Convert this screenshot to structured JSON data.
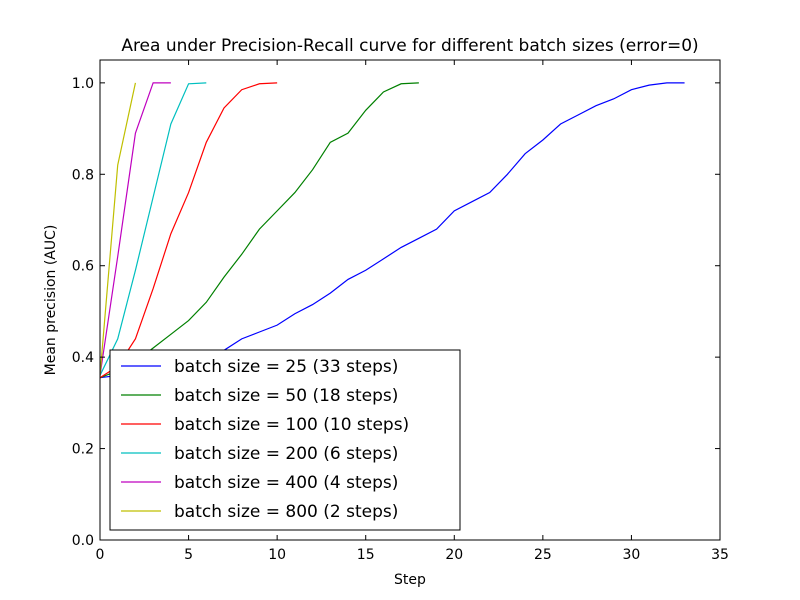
{
  "chart_data": {
    "type": "line",
    "title": "Area under Precision-Recall curve for different batch sizes (error=0)",
    "xlabel": "Step",
    "ylabel": "Mean precision (AUC)",
    "xlim": [
      0,
      35
    ],
    "ylim": [
      0,
      1.05
    ],
    "xticks": [
      0,
      5,
      10,
      15,
      20,
      25,
      30,
      35
    ],
    "xtick_labels": [
      "0",
      "5",
      "10",
      "15",
      "20",
      "25",
      "30",
      "35"
    ],
    "yticks": [
      0,
      0.2,
      0.4,
      0.6,
      0.8,
      1.0
    ],
    "ytick_labels": [
      "0.0",
      "0.2",
      "0.4",
      "0.6",
      "0.8",
      "1.0"
    ],
    "grid": false,
    "legend_position": "lower-left",
    "series": [
      {
        "name": "batch size = 25 (33 steps)",
        "color": "#0000ff",
        "x": [
          0,
          1,
          2,
          3,
          4,
          5,
          6,
          7,
          8,
          9,
          10,
          11,
          12,
          13,
          14,
          15,
          16,
          17,
          18,
          19,
          20,
          21,
          22,
          23,
          24,
          25,
          26,
          27,
          28,
          29,
          30,
          31,
          32,
          33
        ],
        "y": [
          0.355,
          0.36,
          0.37,
          0.38,
          0.39,
          0.4,
          0.405,
          0.415,
          0.44,
          0.455,
          0.47,
          0.495,
          0.515,
          0.54,
          0.57,
          0.59,
          0.615,
          0.64,
          0.66,
          0.68,
          0.72,
          0.74,
          0.76,
          0.8,
          0.845,
          0.875,
          0.91,
          0.93,
          0.95,
          0.965,
          0.985,
          0.995,
          1.0,
          1.0
        ]
      },
      {
        "name": "batch size = 50 (18 steps)",
        "color": "#008000",
        "x": [
          0,
          1,
          2,
          3,
          4,
          5,
          6,
          7,
          8,
          9,
          10,
          11,
          12,
          13,
          14,
          15,
          16,
          17,
          18
        ],
        "y": [
          0.355,
          0.37,
          0.39,
          0.42,
          0.45,
          0.48,
          0.52,
          0.575,
          0.625,
          0.68,
          0.72,
          0.76,
          0.81,
          0.87,
          0.89,
          0.94,
          0.98,
          0.998,
          1.0
        ]
      },
      {
        "name": "batch size = 100 (10 steps)",
        "color": "#ff0000",
        "x": [
          0,
          1,
          2,
          3,
          4,
          5,
          6,
          7,
          8,
          9,
          10
        ],
        "y": [
          0.355,
          0.38,
          0.44,
          0.55,
          0.67,
          0.76,
          0.87,
          0.945,
          0.985,
          0.998,
          1.0
        ]
      },
      {
        "name": "batch size = 200 (6 steps)",
        "color": "#00bfbf",
        "x": [
          0,
          1,
          2,
          3,
          4,
          5,
          6
        ],
        "y": [
          0.36,
          0.44,
          0.59,
          0.75,
          0.91,
          0.998,
          1.0
        ]
      },
      {
        "name": "batch size = 400 (4 steps)",
        "color": "#bf00bf",
        "x": [
          0,
          1,
          2,
          3,
          4
        ],
        "y": [
          0.36,
          0.62,
          0.89,
          1.0,
          1.0
        ]
      },
      {
        "name": "batch size = 800 (2 steps)",
        "color": "#bfbf00",
        "x": [
          0,
          1,
          2
        ],
        "y": [
          0.36,
          0.82,
          1.0
        ]
      }
    ]
  }
}
